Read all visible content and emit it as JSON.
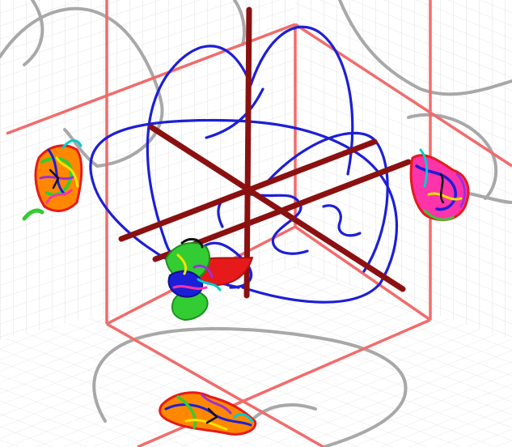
{
  "scene": {
    "kind": "3d-neuron-projection",
    "colors": {
      "background": "#ffffff",
      "grid": "#d9d9d9",
      "bounding_box": "#f26b6b",
      "brain_outline": "#a8a8a8",
      "neuron_trace": "#1d1fd6",
      "axes": "#8b1010",
      "soma_red": "#e61a1a",
      "projection_palette": [
        "#e61a1a",
        "#ff8800",
        "#f5e400",
        "#33cc33",
        "#1d1fd6",
        "#9b30d9",
        "#ff33aa",
        "#00cccc",
        "#111111"
      ]
    },
    "views": [
      "left-wall-projection",
      "right-wall-projection",
      "floor-projection"
    ]
  }
}
